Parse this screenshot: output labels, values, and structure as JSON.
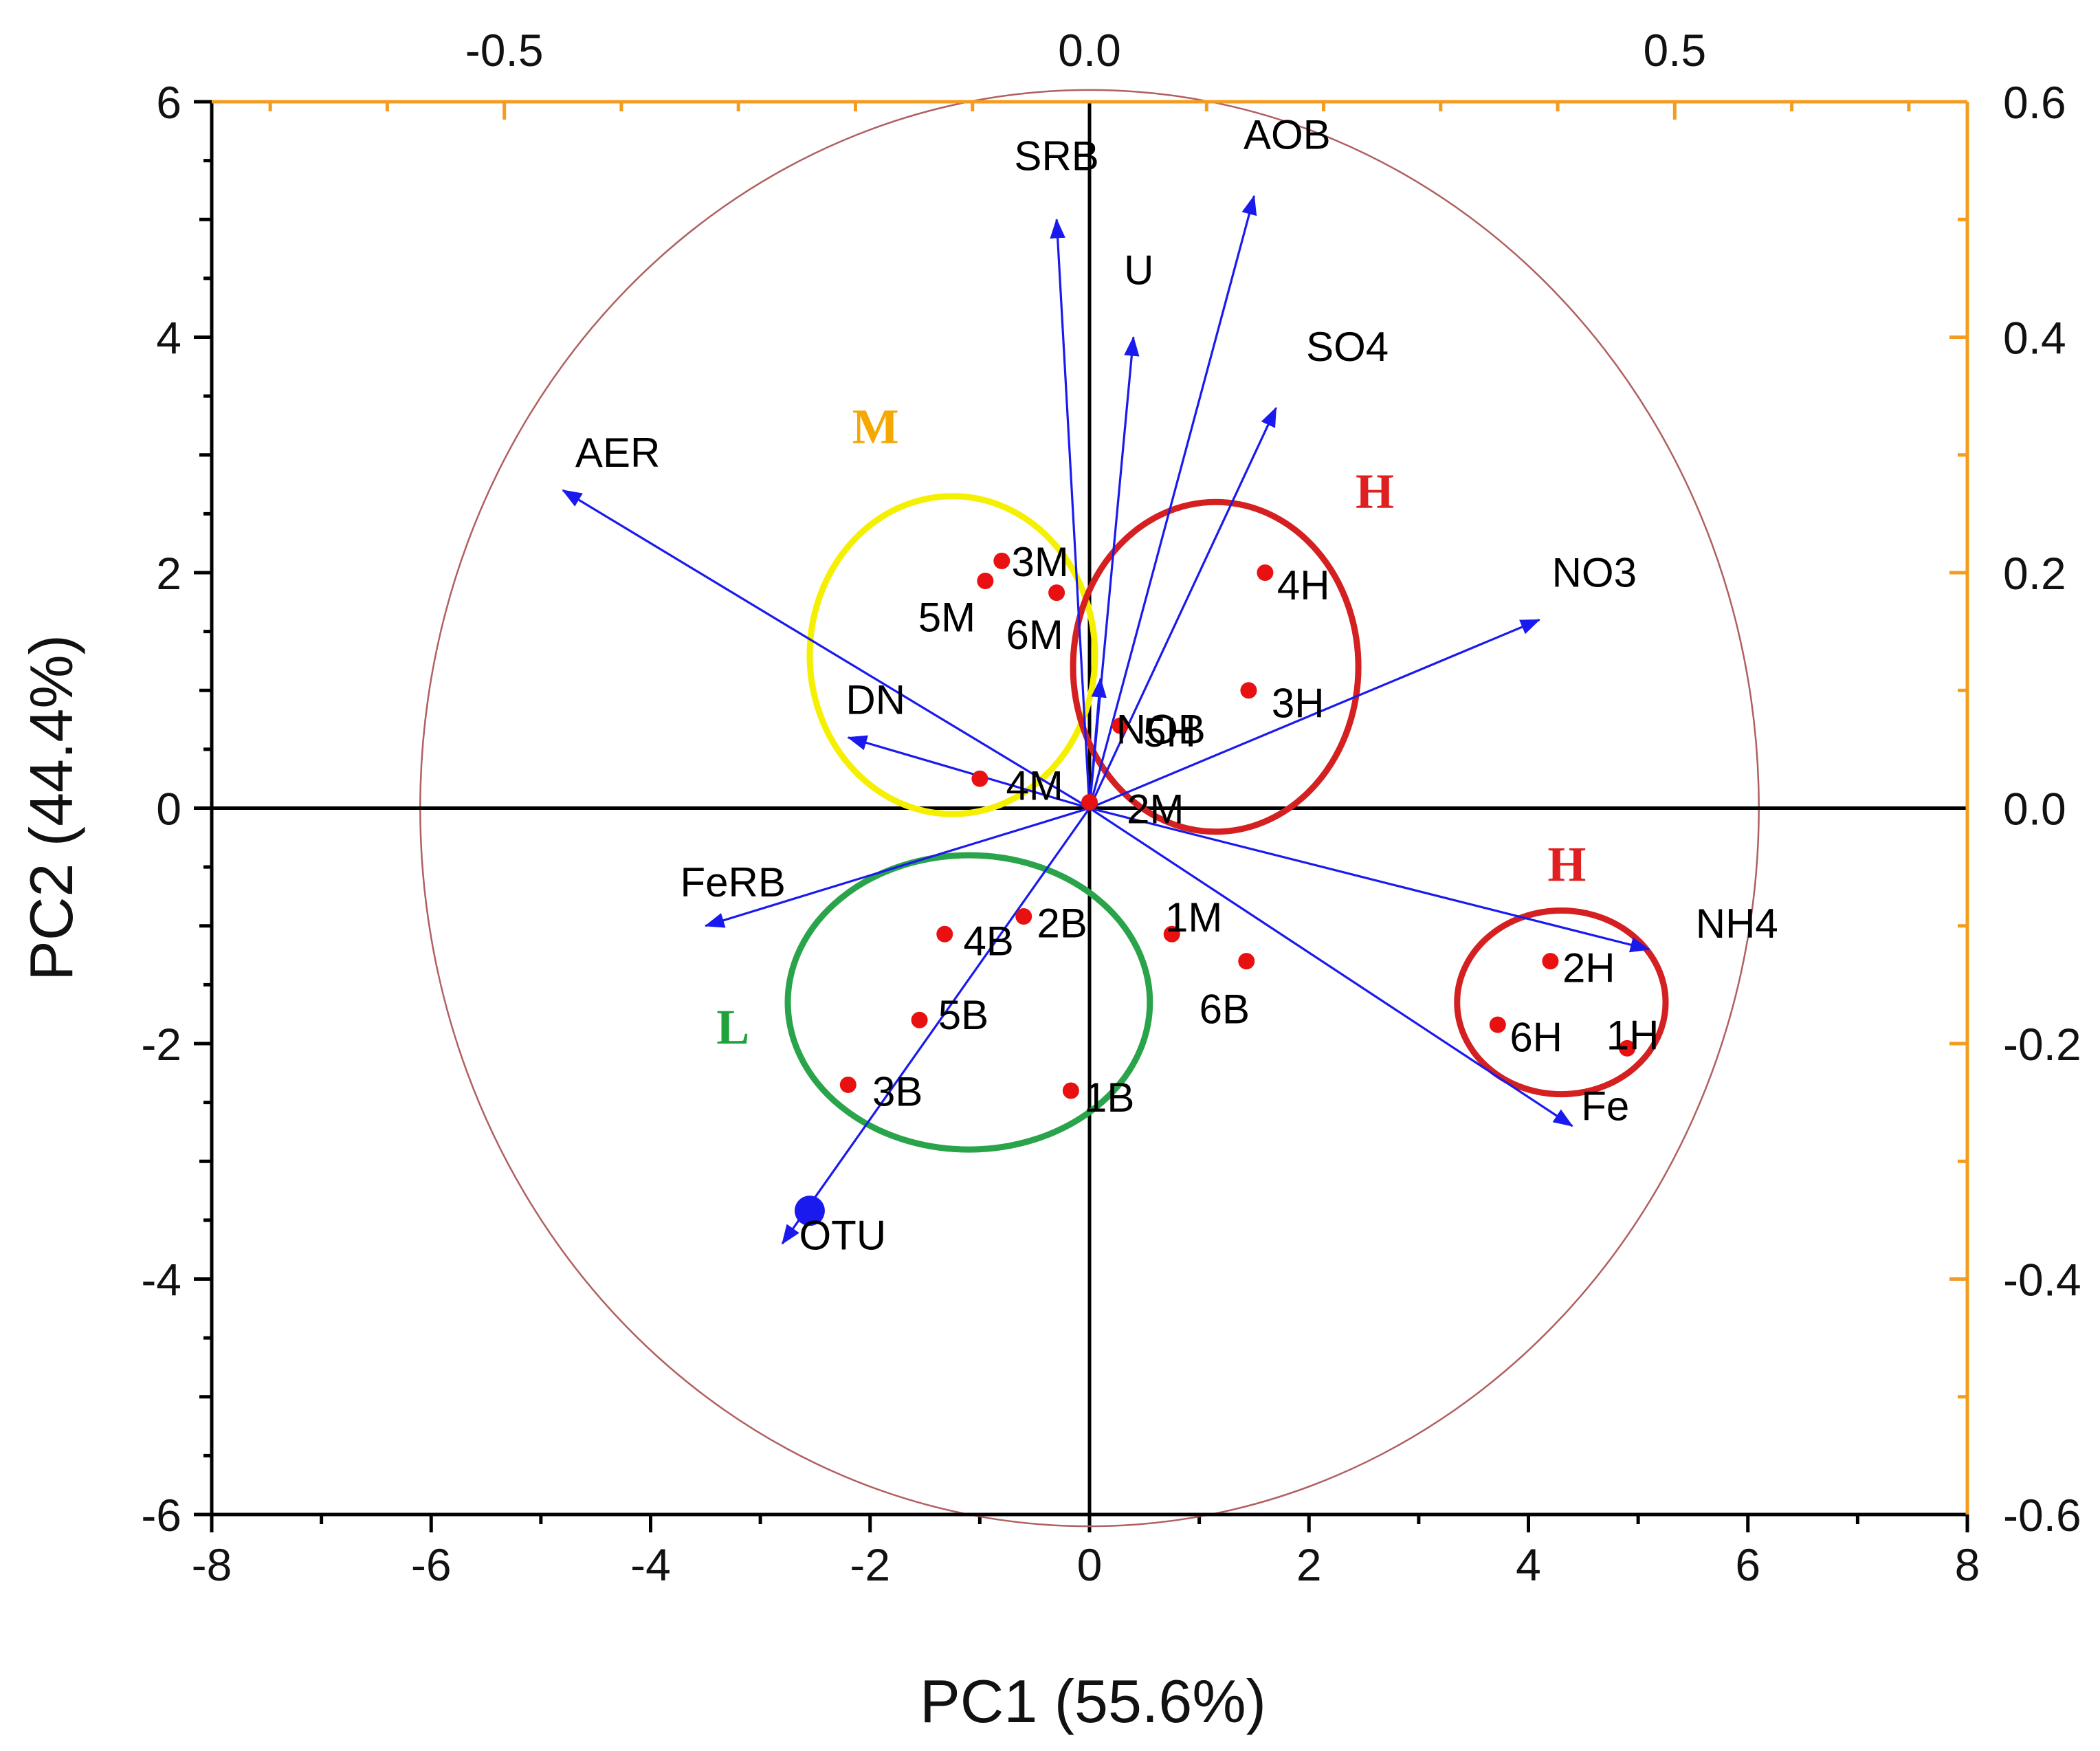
{
  "chart_data": {
    "type": "scatter",
    "subtype": "pca-biplot",
    "title": "",
    "xlabel": "PC1 (55.6%)",
    "ylabel": "PC2 (44.4%)",
    "xlim": [
      -8,
      8
    ],
    "ylim": [
      -6,
      6
    ],
    "x_ticks": [
      "-8",
      "-6",
      "-4",
      "-2",
      "0",
      "2",
      "4",
      "6",
      "8"
    ],
    "y_ticks": [
      "-6",
      "-4",
      "-2",
      "0",
      "2",
      "4",
      "6"
    ],
    "top_axis": {
      "lim": [
        -0.75,
        0.75
      ],
      "ticks": [
        "-0.5",
        "0.0",
        "0.5"
      ],
      "color": "#f39c1f"
    },
    "right_axis": {
      "lim": [
        -0.6,
        0.6
      ],
      "ticks": [
        "-0.6",
        "-0.4",
        "-0.2",
        "0.0",
        "0.2",
        "0.4",
        "0.6"
      ],
      "color": "#f39c1f"
    },
    "correlation_circle_radius": 6.1,
    "loadings": [
      {
        "name": "SRB",
        "x": -0.3,
        "y": 5.0
      },
      {
        "name": "AOB",
        "x": 1.5,
        "y": 5.2
      },
      {
        "name": "U",
        "x": 0.4,
        "y": 4.0
      },
      {
        "name": "SO4",
        "x": 1.7,
        "y": 3.4
      },
      {
        "name": "AER",
        "x": -4.8,
        "y": 2.7
      },
      {
        "name": "NOB",
        "x": 0.1,
        "y": 1.1
      },
      {
        "name": "NO3",
        "x": 4.1,
        "y": 1.6
      },
      {
        "name": "DN",
        "x": -2.2,
        "y": 0.6
      },
      {
        "name": "FeRB",
        "x": -3.5,
        "y": -1.0
      },
      {
        "name": "NH4",
        "x": 5.1,
        "y": -1.2
      },
      {
        "name": "Fe",
        "x": 4.4,
        "y": -2.7
      },
      {
        "name": "OTU",
        "x": -2.8,
        "y": -3.7
      }
    ],
    "samples": [
      {
        "name": "3M",
        "x": -0.8,
        "y": 2.1
      },
      {
        "name": "5M",
        "x": -0.95,
        "y": 1.93
      },
      {
        "name": "6M",
        "x": -0.3,
        "y": 1.83
      },
      {
        "name": "4H",
        "x": 1.6,
        "y": 2.0
      },
      {
        "name": "3H",
        "x": 1.45,
        "y": 1.0
      },
      {
        "name": "5H",
        "x": 0.28,
        "y": 0.7
      },
      {
        "name": "4M",
        "x": -1.0,
        "y": 0.25
      },
      {
        "name": "2M",
        "x": 0.0,
        "y": 0.05
      },
      {
        "name": "1M",
        "x": 0.75,
        "y": -1.07
      },
      {
        "name": "6B",
        "x": 1.43,
        "y": -1.3
      },
      {
        "name": "2B",
        "x": -0.6,
        "y": -0.92
      },
      {
        "name": "4B",
        "x": -1.32,
        "y": -1.07
      },
      {
        "name": "5B",
        "x": -1.55,
        "y": -1.8
      },
      {
        "name": "3B",
        "x": -2.2,
        "y": -2.35
      },
      {
        "name": "1B",
        "x": -0.17,
        "y": -2.4
      },
      {
        "name": "2H",
        "x": 4.2,
        "y": -1.3
      },
      {
        "name": "6H",
        "x": 3.72,
        "y": -1.84
      },
      {
        "name": "1H",
        "x": 4.9,
        "y": -2.04
      }
    ],
    "groups": [
      {
        "label": "M",
        "color": "#f5a800",
        "ring_color": "#f5f000",
        "center": [
          -1.25,
          1.3
        ],
        "radius_x": 1.3,
        "radius_y": 1.35
      },
      {
        "label": "H",
        "color": "#e02020",
        "ring_color": "#d42020",
        "center": [
          1.15,
          1.2
        ],
        "radius_x": 1.3,
        "radius_y": 1.4
      },
      {
        "label": "L",
        "color": "#1fa23a",
        "ring_color": "#2aa44a",
        "center": [
          -1.1,
          -1.65
        ],
        "radius_x": 1.65,
        "radius_y": 1.25
      },
      {
        "label": "H",
        "color": "#e02020",
        "ring_color": "#d42020",
        "center": [
          4.3,
          -1.65
        ],
        "radius_x": 0.95,
        "radius_y": 0.78
      }
    ]
  }
}
